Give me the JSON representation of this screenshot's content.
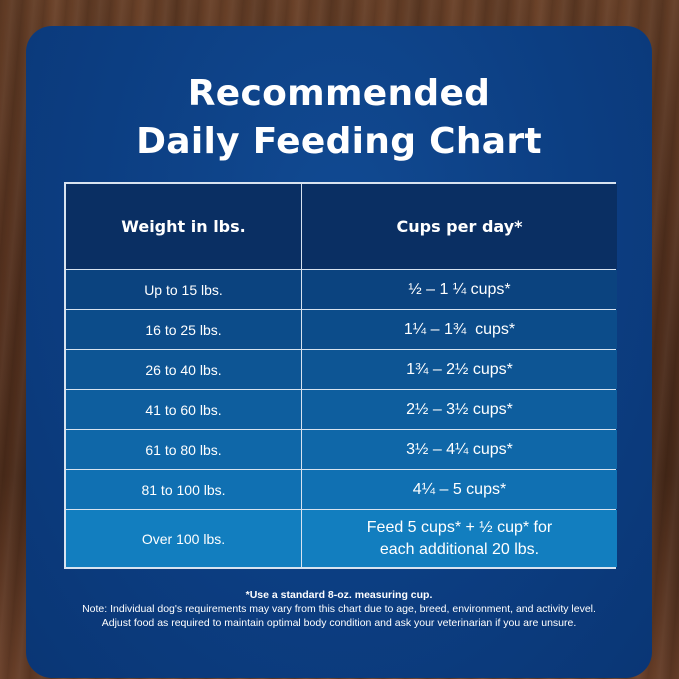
{
  "title": {
    "line1": "Recommended",
    "line2": "Daily Feeding Chart"
  },
  "table": {
    "headers": [
      "Weight in lbs.",
      "Cups per day*"
    ],
    "rows": [
      {
        "weight": "Up to 15 lbs.",
        "cups": "½ – 1 ¼ cups*"
      },
      {
        "weight": "16 to 25 lbs.",
        "cups": "1¼ – 1¾  cups*"
      },
      {
        "weight": "26 to 40 lbs.",
        "cups": "1¾ – 2½ cups*"
      },
      {
        "weight": "41 to 60 lbs.",
        "cups": "2½ – 3½ cups*"
      },
      {
        "weight": "61 to 80 lbs.",
        "cups": "3½ – 4¼ cups*"
      },
      {
        "weight": "81 to 100 lbs.",
        "cups": "4¼ – 5 cups*"
      },
      {
        "weight": "Over 100 lbs.",
        "cups_line1": "Feed 5 cups* + ½ cup* for",
        "cups_line2": "each additional 20 lbs."
      }
    ]
  },
  "notes": {
    "measure": "*Use a standard 8-oz. measuring cup.",
    "line1": "Note: Individual dog's requirements may vary from this chart due to age, breed, environment, and activity level.",
    "line2": "Adjust food as required to maintain optimal body condition and ask your veterinarian if you are unsure."
  },
  "colors": {
    "card": "#0c3e82",
    "header": "#0a2f63",
    "row_top": "#0b437f",
    "row_bottom": "#127ebf",
    "background": "#5a3420"
  }
}
